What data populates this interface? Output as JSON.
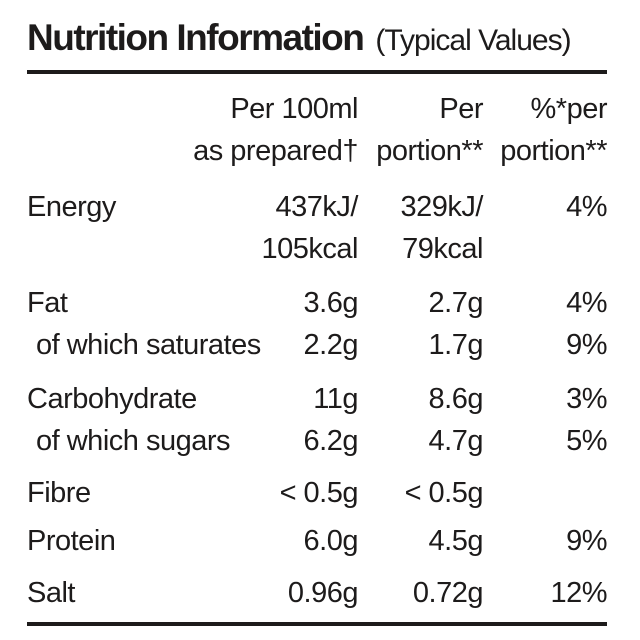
{
  "title": {
    "main": "Nutrition Information",
    "sub": "(Typical Values)"
  },
  "table": {
    "columns": {
      "per100": "Per 100ml\nas prepared†",
      "portion": "Per\nportion**",
      "percent": "%*per\nportion**"
    },
    "rows": [
      {
        "label": "Energy",
        "per100": "437kJ/\n105kcal",
        "portion": "329kJ/\n79kcal",
        "percent": "4%"
      },
      {
        "label": "Fat",
        "per100": "3.6g",
        "portion": "2.7g",
        "percent": "4%"
      },
      {
        "label": "of which saturates",
        "per100": "2.2g",
        "portion": "1.7g",
        "percent": "9%"
      },
      {
        "label": "Carbohydrate",
        "per100": "11g",
        "portion": "8.6g",
        "percent": "3%"
      },
      {
        "label": "of which sugars",
        "per100": "6.2g",
        "portion": "4.7g",
        "percent": "5%"
      },
      {
        "label": "Fibre",
        "per100": "< 0.5g",
        "portion": "< 0.5g",
        "percent": ""
      },
      {
        "label": "Protein",
        "per100": "6.0g",
        "portion": "4.5g",
        "percent": "9%"
      },
      {
        "label": "Salt",
        "per100": "0.96g",
        "portion": "0.72g",
        "percent": "12%"
      }
    ]
  },
  "colors": {
    "text": "#1d1b1b",
    "background": "#ffffff"
  }
}
